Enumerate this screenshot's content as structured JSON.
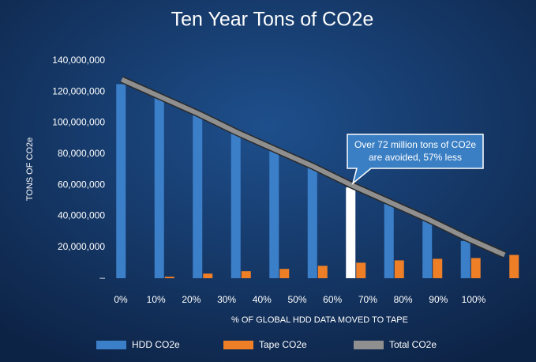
{
  "chart_data": {
    "type": "bar",
    "title": "Ten Year Tons of CO2e",
    "x_label": "% OF GLOBAL HDD DATA MOVED TO TAPE",
    "y_label": "TONS OF CO2e",
    "categories": [
      "0%",
      "10%",
      "20%",
      "30%",
      "40%",
      "50%",
      "60%",
      "70%",
      "80%",
      "90%",
      "100%"
    ],
    "series": [
      {
        "name": "HDD CO2e",
        "color": "#3c7fc9",
        "values": [
          125000000,
          116000000,
          105000000,
          94000000,
          82000000,
          71000000,
          58500000,
          48000000,
          37000000,
          24000000,
          0
        ],
        "point_colors": [
          "#3c7fc9",
          "#3c7fc9",
          "#3c7fc9",
          "#3c7fc9",
          "#3c7fc9",
          "#3c7fc9",
          "#ffffff",
          "#3c7fc9",
          "#3c7fc9",
          "#3c7fc9",
          "#3c7fc9"
        ]
      },
      {
        "name": "Tape CO2e",
        "color": "#ee7f26",
        "values": [
          0,
          1000000,
          3000000,
          4500000,
          6000000,
          8000000,
          10000000,
          11500000,
          12500000,
          13000000,
          15000000
        ]
      },
      {
        "name": "Total CO2e",
        "type": "line",
        "color": "#8f8f8f",
        "values": [
          128000000,
          117000000,
          106000000,
          94000000,
          83000000,
          72000000,
          60000000,
          49000000,
          38000000,
          26000000,
          15000000
        ]
      }
    ],
    "ylim": [
      0,
      140000000
    ],
    "yticks": [
      {
        "value": 0,
        "label": "–"
      },
      {
        "value": 20000000,
        "label": "20,000,000"
      },
      {
        "value": 40000000,
        "label": "40,000,000"
      },
      {
        "value": 60000000,
        "label": "60,000,000"
      },
      {
        "value": 80000000,
        "label": "80,000,000"
      },
      {
        "value": 100000000,
        "label": "100,000,000"
      },
      {
        "value": 120000000,
        "label": "120,000,000"
      },
      {
        "value": 140000000,
        "label": "140,000,000"
      }
    ],
    "grid": false,
    "legend": "bottom",
    "annotation": [
      "Over 72 million tons of CO2e",
      "are avoided, 57% less"
    ]
  }
}
